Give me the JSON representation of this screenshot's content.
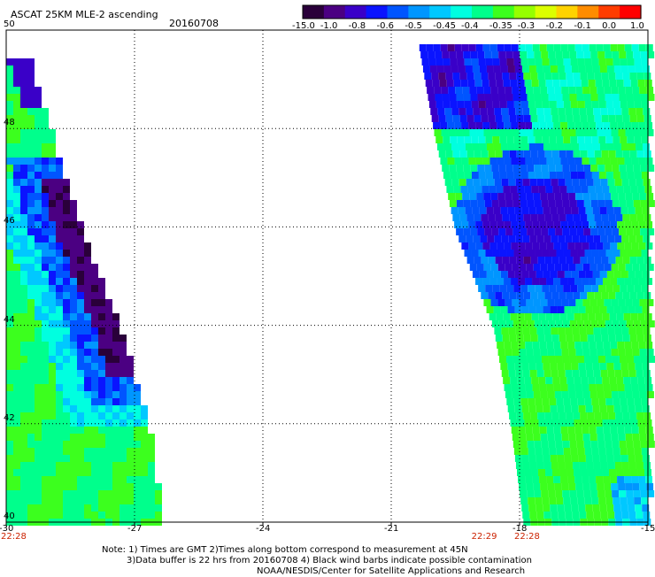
{
  "header": {
    "title": "ASCAT 25KM MLE-2 ascending",
    "date": "20160708"
  },
  "colorbar": {
    "labels": [
      "-15.0",
      "-1.0",
      "-0.8",
      "-0.6",
      "-0.5",
      "-0.45",
      "-0.4",
      "-0.35",
      "-0.3",
      "-0.2",
      "-0.1",
      "0.0",
      "1.0"
    ],
    "colors": [
      "#2a003a",
      "#4b0082",
      "#3a00c8",
      "#0a14ff",
      "#0055ff",
      "#0096ff",
      "#00c8ff",
      "#00ffe0",
      "#00ff8c",
      "#3cff1e",
      "#96ff00",
      "#dcff00",
      "#ffd200",
      "#ff8c00",
      "#ff3c00",
      "#ff0000"
    ]
  },
  "axes": {
    "lon_ticks": [
      "-30",
      "-27",
      "-24",
      "-21",
      "-18",
      "-15"
    ],
    "lat_ticks": [
      "50",
      "48",
      "46",
      "44",
      "42",
      "40"
    ],
    "lon_range": [
      -30,
      -15
    ],
    "lat_range": [
      40,
      50
    ],
    "grid": "dotted"
  },
  "time_labels": [
    {
      "text": "22:28",
      "lon": -30
    },
    {
      "text": "22:29",
      "lon": -19
    },
    {
      "text": "22:28",
      "lon": -18
    }
  ],
  "notes": {
    "line1": "Note: 1) Times are GMT 2)Times along bottom correspond to measurement at 45N",
    "line2": "3)Data buffer is 22 hrs from 20160708 4) Black wind barbs indicate possible contamination",
    "line3": "NOAA/NESDIS/Center for Satellite Applications and Research"
  },
  "map_data": {
    "swaths": [
      {
        "name": "left",
        "lon_min": -30,
        "edge": [
          [
            50,
            -29.7
          ],
          [
            48,
            -29.0
          ],
          [
            46,
            -28.3
          ],
          [
            44,
            -27.4
          ],
          [
            42,
            -26.7
          ],
          [
            40,
            -26.4
          ]
        ]
      },
      {
        "name": "right",
        "lon_min_edge": [
          [
            50,
            -20.4
          ],
          [
            48,
            -20.0
          ],
          [
            46,
            -19.5
          ],
          [
            44,
            -18.6
          ],
          [
            42,
            -18.2
          ],
          [
            40,
            -17.9
          ]
        ],
        "lon_max": -15
      }
    ]
  }
}
